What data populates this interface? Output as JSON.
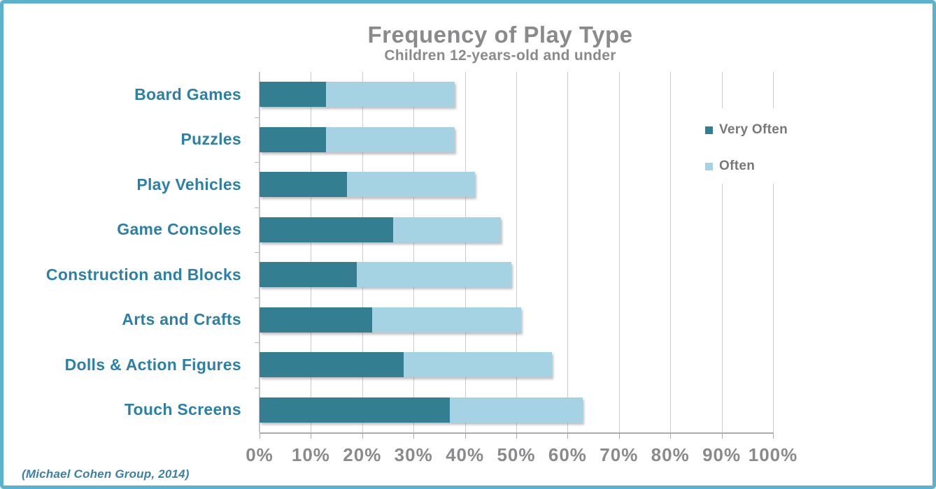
{
  "title": "Frequency of Play Type",
  "subtitle": "Children 12-years-old and under",
  "source_note": "(Michael Cohen Group, 2014)",
  "colors": {
    "very_often": "#347e91",
    "often": "#a5d3e3",
    "category_label": "#2c80a6",
    "title_text": "#8a8a8c",
    "axis_text": "#8a8a8c",
    "legend_text": "#77787a",
    "frame_border": "#5bb2cd",
    "gridline": "#cbcbcb"
  },
  "legend": {
    "items": [
      {
        "label": "Very Often",
        "color": "#347e91"
      },
      {
        "label": "Often",
        "color": "#a5d3e3"
      }
    ]
  },
  "chart_data": {
    "type": "bar",
    "orientation": "horizontal",
    "stacked": true,
    "title": "Frequency of Play Type",
    "subtitle": "Children 12-years-old and under",
    "categories": [
      "Board Games",
      "Puzzles",
      "Play Vehicles",
      "Game Consoles",
      "Construction and Blocks",
      "Arts and Crafts",
      "Dolls & Action Figures",
      "Touch Screens"
    ],
    "series": [
      {
        "name": "Very Often",
        "color": "#347e91",
        "values": [
          13,
          13,
          17,
          26,
          19,
          22,
          28,
          37
        ]
      },
      {
        "name": "Often",
        "color": "#a5d3e3",
        "values": [
          25,
          25,
          25,
          21,
          30,
          29,
          29,
          26
        ]
      }
    ],
    "stacked_totals": [
      38,
      38,
      42,
      47,
      49,
      51,
      57,
      63
    ],
    "x_ticks": [
      "0%",
      "10%",
      "20%",
      "30%",
      "40%",
      "50%",
      "60%",
      "70%",
      "80%",
      "90%",
      "100%"
    ],
    "xlim": [
      0,
      100
    ],
    "grid": true,
    "legend_position": "right",
    "source": "(Michael Cohen Group, 2014)"
  }
}
